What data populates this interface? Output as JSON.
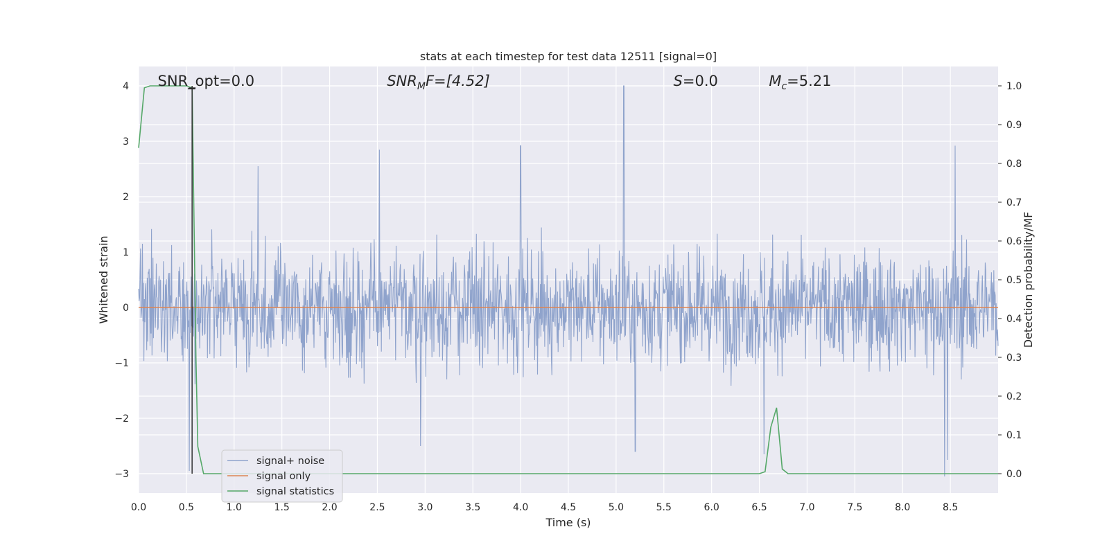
{
  "chart_data": {
    "type": "line",
    "title": "stats at each timestep for test data 12511 [signal=0]",
    "xlabel": "Time (s)",
    "ylabel_left": "Whitened strain",
    "ylabel_right": "Detection probability/MF",
    "xlim": [
      0.0,
      9.0
    ],
    "ylim_left": [
      -3.35,
      4.35
    ],
    "ylim_right": [
      -0.05,
      1.05
    ],
    "x_ticks": [
      "0.0",
      "0.5",
      "1.0",
      "1.5",
      "2.0",
      "2.5",
      "3.0",
      "3.5",
      "4.0",
      "4.5",
      "5.0",
      "5.5",
      "6.0",
      "6.5",
      "7.0",
      "7.5",
      "8.0",
      "8.5"
    ],
    "y_left_ticks": [
      "4",
      "3",
      "2",
      "1",
      "0",
      "−1",
      "−2",
      "−3"
    ],
    "y_right_ticks": [
      "1.0",
      "0.9",
      "0.8",
      "0.7",
      "0.6",
      "0.5",
      "0.4",
      "0.3",
      "0.2",
      "0.1",
      "0.0"
    ],
    "grid": true,
    "background": "#eaeaf2",
    "legend_position": "lower-left",
    "annotations": [
      {
        "id": "snr-opt",
        "text": "SNR_opt=0.0",
        "x": 0.2
      },
      {
        "id": "snr-mf",
        "text": "SNR",
        "sub": "M",
        "tail": "F=[4.52]",
        "x": 2.6
      },
      {
        "id": "s",
        "text": "S",
        "tail": "=0.0",
        "x": 5.6
      },
      {
        "id": "mc",
        "text": "M",
        "sub": "c",
        "tail": "=5.21",
        "x": 6.6
      }
    ],
    "series": [
      {
        "name": "signal+ noise",
        "color": "#8fa3cc",
        "kind": "noise",
        "duration": 9.0,
        "sample_count": 1800,
        "typical_amplitude": 1.6,
        "peaks": [
          [
            0.53,
            -2.95
          ],
          [
            1.25,
            2.55
          ],
          [
            2.52,
            2.85
          ],
          [
            2.95,
            -2.5
          ],
          [
            4.0,
            2.92
          ],
          [
            5.08,
            4.0
          ],
          [
            5.2,
            -2.6
          ],
          [
            6.55,
            -2.65
          ],
          [
            8.44,
            -3.05
          ],
          [
            8.47,
            -2.75
          ],
          [
            8.55,
            2.92
          ]
        ]
      },
      {
        "name": "signal only",
        "color": "#dd8452",
        "kind": "line",
        "axis": "left",
        "x": [
          0.0,
          9.0
        ],
        "y": [
          0.0,
          0.0
        ]
      },
      {
        "name": "signal statistics",
        "color": "#55a868",
        "kind": "line",
        "axis": "right",
        "x": [
          0.0,
          0.06,
          0.12,
          0.2,
          0.3,
          0.4,
          0.5,
          0.56,
          0.6,
          0.62,
          0.68,
          1.0,
          2.0,
          3.0,
          4.0,
          5.0,
          6.0,
          6.5,
          6.56,
          6.62,
          6.68,
          6.74,
          6.8,
          7.0,
          8.0,
          9.0
        ],
        "y": [
          0.84,
          0.995,
          1.0,
          1.0,
          1.0,
          1.0,
          1.0,
          0.995,
          0.3,
          0.07,
          0.0,
          0.0,
          0.0,
          0.0,
          0.0,
          0.0,
          0.0,
          0.0,
          0.005,
          0.12,
          0.17,
          0.012,
          0.0,
          0.0,
          0.0,
          0.0
        ]
      }
    ],
    "markers": [
      {
        "name": "vertical-marker",
        "color": "#333333",
        "x": 0.56,
        "y_left_from": 4.0,
        "y_left_to": -3.0
      }
    ]
  }
}
